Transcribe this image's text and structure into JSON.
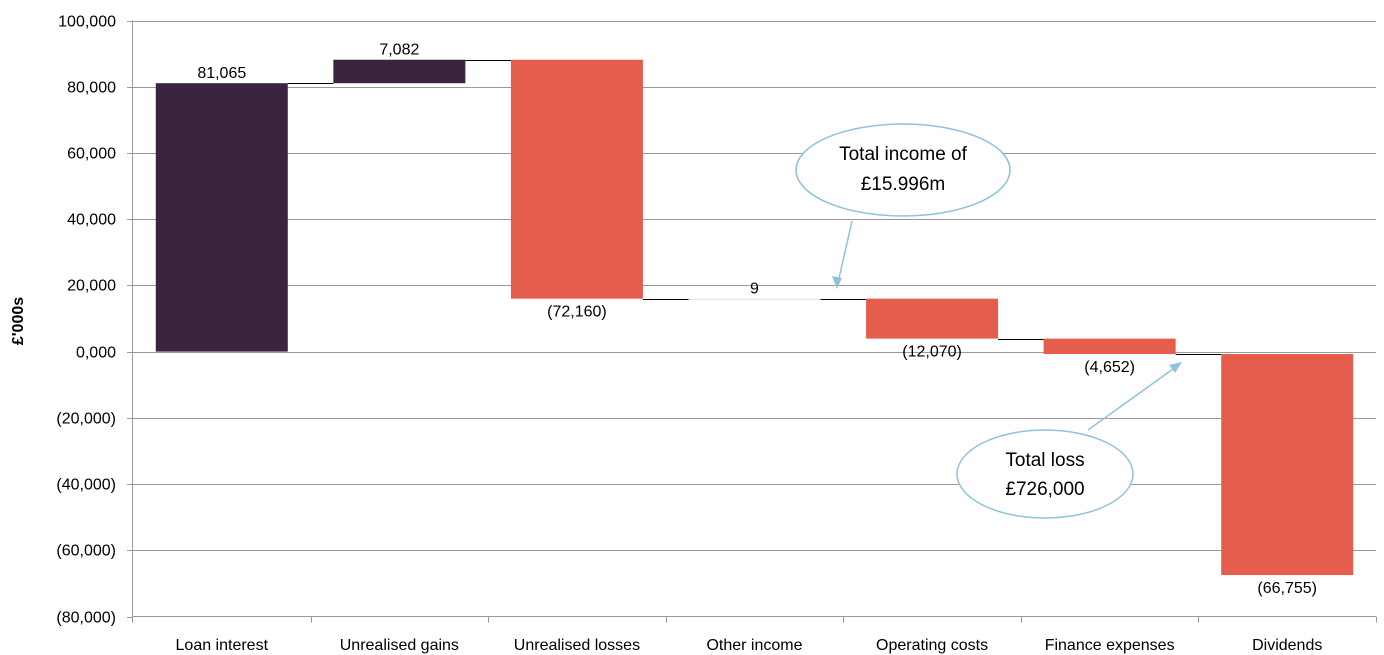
{
  "chart_data": {
    "type": "bar",
    "subtype": "waterfall",
    "ylabel": "£'000s",
    "ylim": [
      -80000,
      100000
    ],
    "ytick_step": 20000,
    "yticks": [
      "(80,000)",
      "(60,000)",
      "(40,000)",
      "(20,000)",
      "0,000",
      "20,000",
      "40,000",
      "60,000",
      "80,000",
      "100,000"
    ],
    "grid": true,
    "categories": [
      "Loan interest",
      "Unrealised gains",
      "Unrealised losses",
      "Other income",
      "Operating costs",
      "Finance expenses",
      "Dividends"
    ],
    "values": [
      81065,
      7082,
      -72160,
      9,
      -12070,
      -4652,
      -66755
    ],
    "labels": [
      "81,065",
      "7,082",
      "(72,160)",
      "9",
      "(12,070)",
      "(4,652)",
      "(66,755)"
    ],
    "colors": {
      "positive": "#3b2440",
      "negative": "#e55d4d",
      "small": "#e6e6e6",
      "grid": "#9a9a9a",
      "connector": "#000000",
      "callout": "#8fc3d9"
    },
    "annotations": [
      {
        "line1": "Total income of",
        "line2": "£15.996m"
      },
      {
        "line1": "Total loss",
        "line2": "£726,000"
      }
    ]
  }
}
